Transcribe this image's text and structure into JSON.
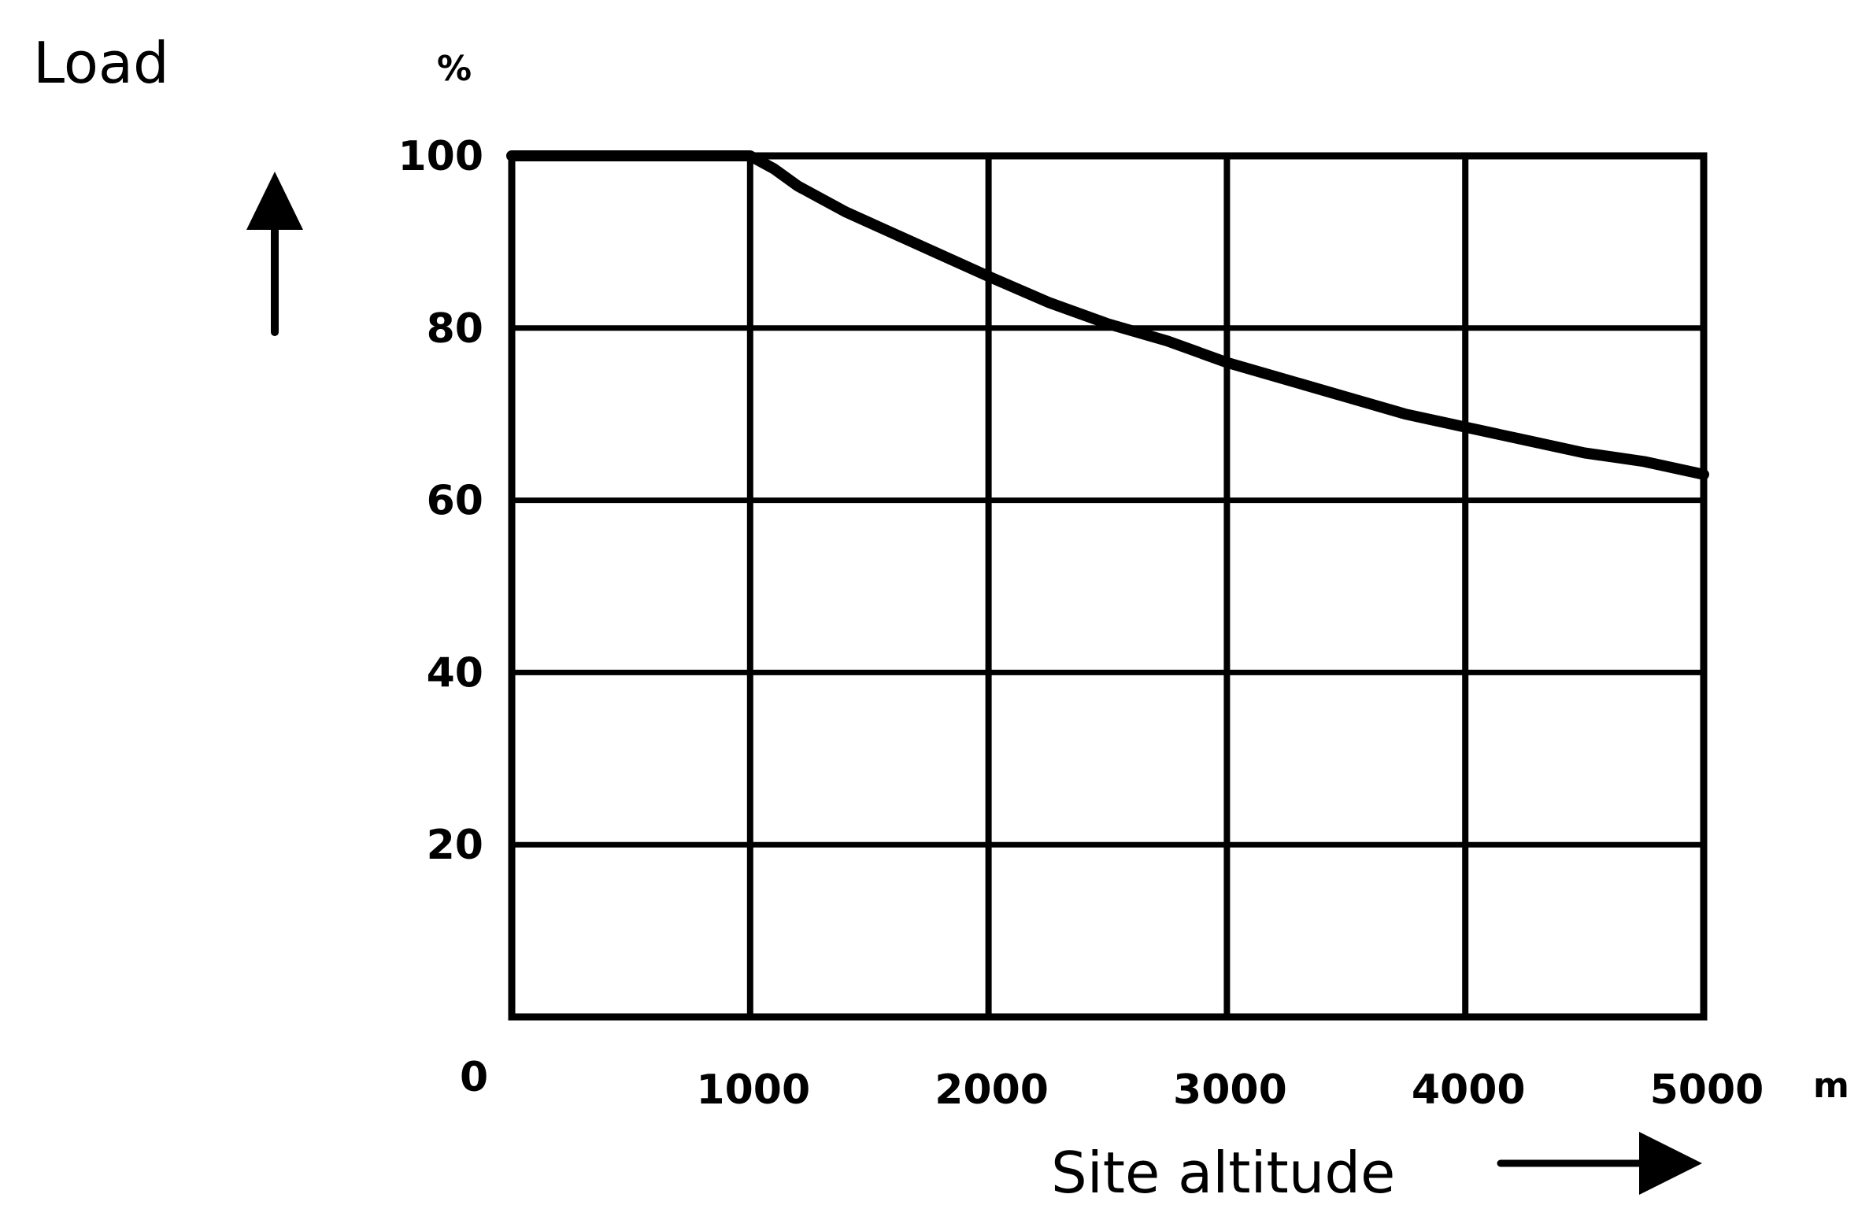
{
  "chart_data": {
    "type": "line",
    "title": "",
    "ylabel": "Load",
    "yunit": "%",
    "xlabel": "Site altitude",
    "xunit": "m",
    "xlim": [
      0,
      5000
    ],
    "ylim": [
      0,
      100
    ],
    "x_ticks": [
      1000,
      2000,
      3000,
      4000,
      5000
    ],
    "x_tick_labels": [
      "1000",
      "2000",
      "3000",
      "4000",
      "5000"
    ],
    "y_ticks": [
      20,
      40,
      60,
      80,
      100
    ],
    "y_tick_labels": [
      "20",
      "40",
      "60",
      "80",
      "100"
    ],
    "origin_label": "0",
    "grid": true,
    "series": [
      {
        "x": [
          0,
          1000,
          1100,
          1200,
          1400,
          1600,
          1800,
          2000,
          2250,
          2500,
          2750,
          3000,
          3250,
          3500,
          3750,
          4000,
          4250,
          4500,
          4750,
          5000
        ],
        "y": [
          100,
          100,
          98.5,
          96.5,
          93.5,
          91,
          88.5,
          86,
          83,
          80.5,
          78.5,
          76,
          74,
          72,
          70,
          68.5,
          67,
          65.5,
          64.5,
          63
        ]
      }
    ],
    "colors": {
      "line": "#000000",
      "grid": "#000000",
      "background": "#ffffff"
    }
  }
}
